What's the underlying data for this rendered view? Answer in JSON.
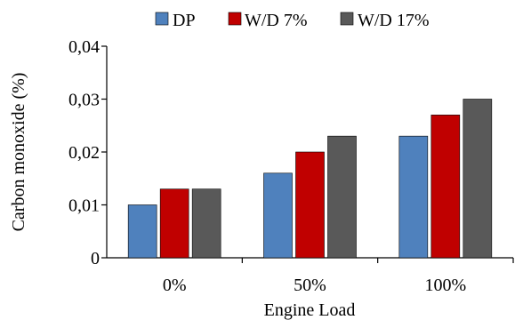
{
  "chart_data": {
    "type": "bar",
    "title": "",
    "xlabel": "Engine Load",
    "ylabel": "Carbon monoxide (%)",
    "categories": [
      "0%",
      "50%",
      "100%"
    ],
    "series": [
      {
        "name": "DP",
        "values": [
          0.01,
          0.016,
          0.023
        ],
        "color": "#4f81bd"
      },
      {
        "name": "W/D 7%",
        "values": [
          0.013,
          0.02,
          0.027
        ],
        "color": "#c00000"
      },
      {
        "name": "W/D 17%",
        "values": [
          0.013,
          0.023,
          0.03
        ],
        "color": "#595959"
      }
    ],
    "ylim": [
      0,
      0.04
    ],
    "yticks": [
      0,
      0.01,
      0.02,
      0.03,
      0.04
    ],
    "ytick_labels": [
      "0",
      "0,01",
      "0,02",
      "0,03",
      "0,04"
    ],
    "grid": false,
    "legend_position": "top"
  }
}
